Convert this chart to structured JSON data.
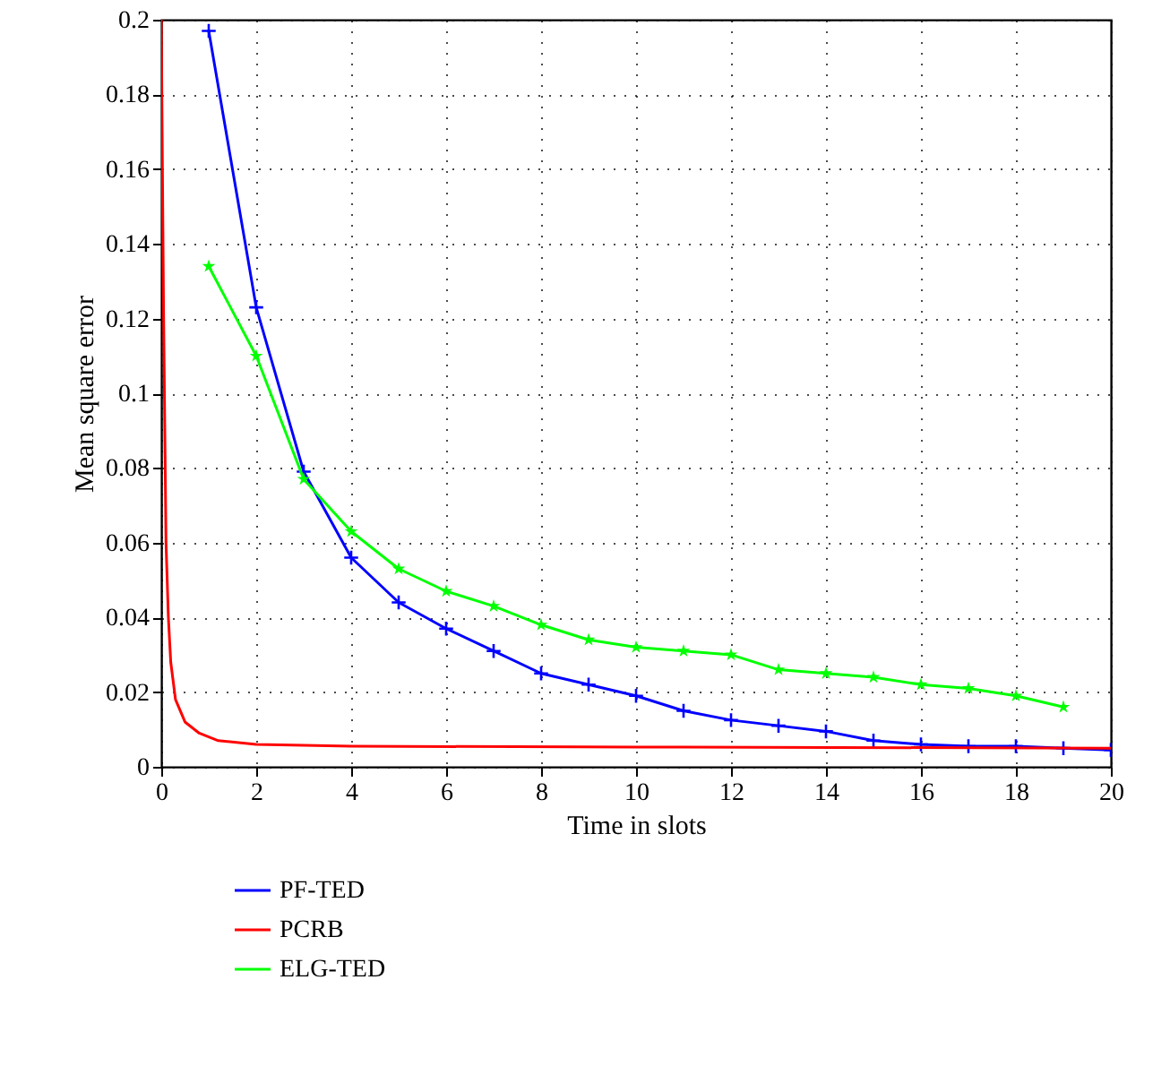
{
  "chart_data": {
    "type": "line",
    "xlabel": "Time in slots",
    "ylabel": "Mean square error",
    "xlim": [
      0,
      20
    ],
    "xticks": [
      0,
      2,
      4,
      6,
      8,
      10,
      12,
      14,
      16,
      18,
      20
    ],
    "ylim": [
      0,
      0.2
    ],
    "yticks": [
      0,
      0.02,
      0.04,
      0.06,
      0.08,
      0.1,
      0.12,
      0.14,
      0.16,
      0.18,
      0.2
    ],
    "grid": true,
    "legend": "bottom left",
    "series": [
      {
        "name": "PF-TED",
        "color": "#0000ff",
        "marker": "cross",
        "x": [
          1,
          2,
          3,
          4,
          5,
          6,
          7,
          8,
          9,
          10,
          11,
          12,
          13,
          14,
          15,
          16,
          17,
          18,
          19,
          20
        ],
        "values": [
          0.197,
          0.123,
          0.079,
          0.056,
          0.044,
          0.037,
          0.031,
          0.025,
          0.022,
          0.019,
          0.015,
          0.0125,
          0.011,
          0.0095,
          0.007,
          0.006,
          0.0055,
          0.0055,
          0.005,
          0.0045
        ]
      },
      {
        "name": "PCRB",
        "color": "#ff0000",
        "marker": "none",
        "x": [
          0,
          0.05,
          0.1,
          0.15,
          0.2,
          0.3,
          0.5,
          0.8,
          1.2,
          2,
          4,
          10,
          20
        ],
        "values": [
          0.2,
          0.12,
          0.06,
          0.04,
          0.028,
          0.018,
          0.012,
          0.009,
          0.007,
          0.006,
          0.0055,
          0.0053,
          0.005
        ]
      },
      {
        "name": "ELG-TED",
        "color": "#00ff00",
        "marker": "star",
        "x": [
          1,
          2,
          3,
          4,
          5,
          6,
          7,
          8,
          9,
          10,
          11,
          12,
          13,
          14,
          15,
          16,
          17,
          18,
          19
        ],
        "values": [
          0.134,
          0.11,
          0.077,
          0.063,
          0.053,
          0.047,
          0.043,
          0.038,
          0.034,
          0.032,
          0.031,
          0.03,
          0.026,
          0.025,
          0.024,
          0.022,
          0.021,
          0.019,
          0.016
        ]
      }
    ]
  }
}
